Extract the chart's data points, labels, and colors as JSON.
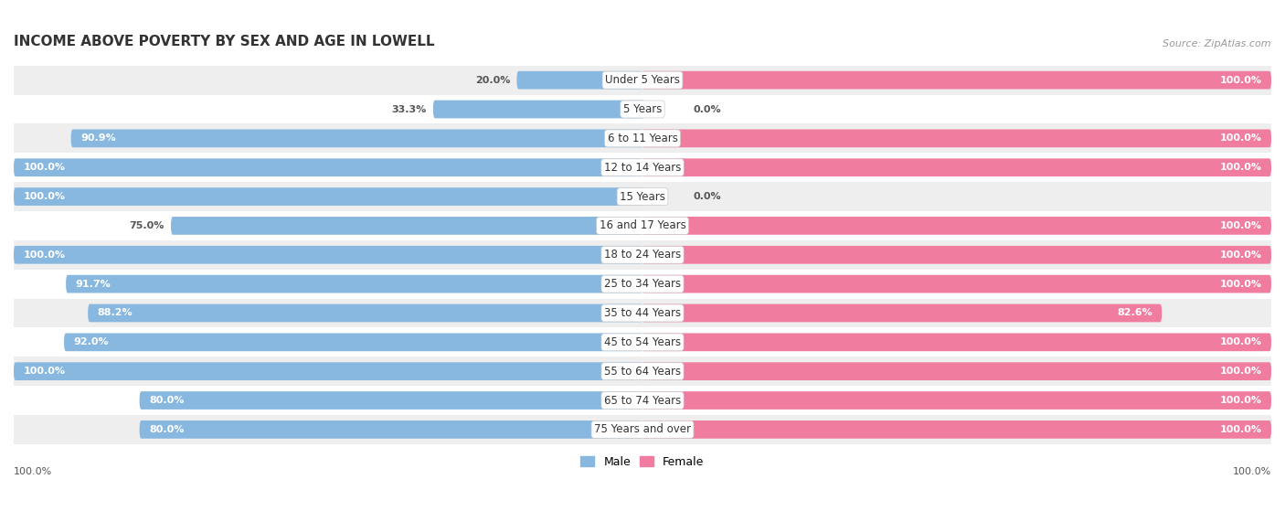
{
  "title": "INCOME ABOVE POVERTY BY SEX AND AGE IN LOWELL",
  "source": "Source: ZipAtlas.com",
  "categories": [
    "Under 5 Years",
    "5 Years",
    "6 to 11 Years",
    "12 to 14 Years",
    "15 Years",
    "16 and 17 Years",
    "18 to 24 Years",
    "25 to 34 Years",
    "35 to 44 Years",
    "45 to 54 Years",
    "55 to 64 Years",
    "65 to 74 Years",
    "75 Years and over"
  ],
  "male_values": [
    20.0,
    33.3,
    90.9,
    100.0,
    100.0,
    75.0,
    100.0,
    91.7,
    88.2,
    92.0,
    100.0,
    80.0,
    80.0
  ],
  "female_values": [
    100.0,
    0.0,
    100.0,
    100.0,
    0.0,
    100.0,
    100.0,
    100.0,
    82.6,
    100.0,
    100.0,
    100.0,
    100.0
  ],
  "male_color": "#88b8e0",
  "female_color": "#f07ca0",
  "female_small_color": "#f5afc8",
  "bar_height": 0.62,
  "row_bg_even": "#eeeeee",
  "row_bg_odd": "#ffffff",
  "title_fontsize": 11,
  "label_fontsize": 8.5,
  "value_fontsize": 8,
  "legend_fontsize": 9,
  "source_fontsize": 8
}
